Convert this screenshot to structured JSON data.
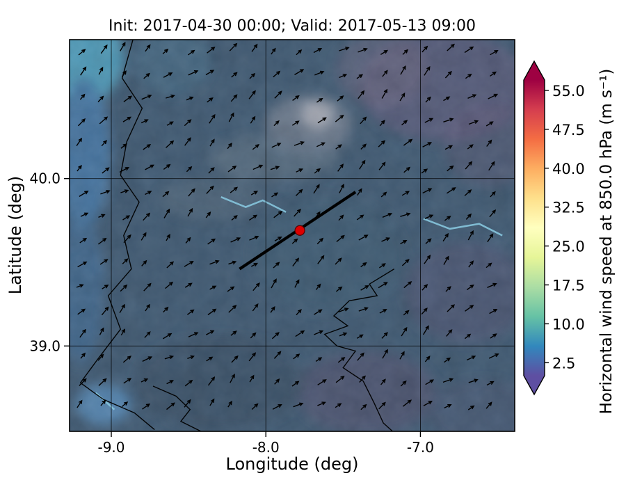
{
  "chart_data": {
    "type": "heatmap",
    "title": "Init: 2017-04-30 00:00; Valid: 2017-05-13 09:00",
    "xlabel": "Longitude (deg)",
    "ylabel": "Latitude (deg)",
    "x_range": [
      -9.27,
      -6.39
    ],
    "y_range": [
      38.49,
      40.83
    ],
    "xticks": [
      {
        "value": -9.0,
        "label": "-9.0"
      },
      {
        "value": -8.0,
        "label": "-8.0"
      },
      {
        "value": -7.0,
        "label": "-7.0"
      }
    ],
    "yticks": [
      {
        "value": 39.0,
        "label": "39.0"
      },
      {
        "value": 40.0,
        "label": "40.0"
      }
    ],
    "grid": true,
    "colorbar": {
      "label": "Horizontal wind speed at 850.0 hPa (m s⁻¹)",
      "units": "m s⁻¹",
      "value_range": [
        0,
        57
      ],
      "extend": "both",
      "colormap": "Spectral_r",
      "ticks": [
        {
          "value": 55.0,
          "label": "55.0"
        },
        {
          "value": 47.5,
          "label": "47.5"
        },
        {
          "value": 40.0,
          "label": "40.0"
        },
        {
          "value": 32.5,
          "label": "32.5"
        },
        {
          "value": 25.0,
          "label": "25.0"
        },
        {
          "value": 17.5,
          "label": "17.5"
        },
        {
          "value": 10.0,
          "label": "10.0"
        },
        {
          "value": 2.5,
          "label": "2.5"
        }
      ],
      "gradient_stops": [
        {
          "pos": 0.0,
          "color": "#5e4fa2"
        },
        {
          "pos": 0.1,
          "color": "#3288bd"
        },
        {
          "pos": 0.2,
          "color": "#66c2a5"
        },
        {
          "pos": 0.3,
          "color": "#abdda4"
        },
        {
          "pos": 0.4,
          "color": "#e6f598"
        },
        {
          "pos": 0.5,
          "color": "#ffffbf"
        },
        {
          "pos": 0.6,
          "color": "#fee08b"
        },
        {
          "pos": 0.7,
          "color": "#fdae61"
        },
        {
          "pos": 0.8,
          "color": "#f46d43"
        },
        {
          "pos": 0.9,
          "color": "#d53e4f"
        },
        {
          "pos": 1.0,
          "color": "#9e0142"
        }
      ]
    },
    "field": {
      "description": "Wind speed mostly 2.5-10 m s-1 over the domain; higher (teal/blue) over the Atlantic at the north-west corner, purple-gray patches inland",
      "base_color": "#44607b",
      "patches": [
        {
          "lon": -9.22,
          "lat": 40.72,
          "rx": 0.3,
          "ry": 0.28,
          "color": "#55a8c8",
          "opacity": 0.95
        },
        {
          "lon": -9.18,
          "lat": 40.15,
          "rx": 0.17,
          "ry": 0.45,
          "color": "#4b80b0",
          "opacity": 0.9
        },
        {
          "lon": -9.2,
          "lat": 39.35,
          "rx": 0.15,
          "ry": 0.45,
          "color": "#47749f",
          "opacity": 0.75
        },
        {
          "lon": -9.05,
          "lat": 38.65,
          "rx": 0.18,
          "ry": 0.12,
          "color": "#5d95c5",
          "opacity": 0.85
        },
        {
          "lon": -8.6,
          "lat": 40.7,
          "rx": 0.25,
          "ry": 0.2,
          "color": "#4e7d9a",
          "opacity": 0.5
        },
        {
          "lon": -7.67,
          "lat": 40.38,
          "rx": 0.1,
          "ry": 0.08,
          "color": "#eeedf1",
          "opacity": 0.95
        },
        {
          "lon": -7.72,
          "lat": 40.32,
          "rx": 0.28,
          "ry": 0.18,
          "color": "#9197a8",
          "opacity": 0.6
        },
        {
          "lon": -7.95,
          "lat": 40.12,
          "rx": 0.42,
          "ry": 0.14,
          "color": "#64798d",
          "opacity": 0.65
        },
        {
          "lon": -8.35,
          "lat": 39.88,
          "rx": 0.35,
          "ry": 0.12,
          "color": "#5d7386",
          "opacity": 0.55
        },
        {
          "lon": -6.85,
          "lat": 40.55,
          "rx": 0.55,
          "ry": 0.33,
          "color": "#6c6186",
          "opacity": 0.55
        },
        {
          "lon": -7.25,
          "lat": 40.65,
          "rx": 0.3,
          "ry": 0.22,
          "color": "#7a708f",
          "opacity": 0.45
        },
        {
          "lon": -6.55,
          "lat": 40.2,
          "rx": 0.3,
          "ry": 0.25,
          "color": "#665e80",
          "opacity": 0.4
        },
        {
          "lon": -6.7,
          "lat": 39.32,
          "rx": 0.4,
          "ry": 0.3,
          "color": "#5e5a7c",
          "opacity": 0.4
        },
        {
          "lon": -7.35,
          "lat": 38.72,
          "rx": 0.45,
          "ry": 0.25,
          "color": "#5c5677",
          "opacity": 0.5
        },
        {
          "lon": -8.3,
          "lat": 38.78,
          "rx": 0.55,
          "ry": 0.28,
          "color": "#3a536b",
          "opacity": 0.6
        },
        {
          "lon": -7.6,
          "lat": 39.55,
          "rx": 0.5,
          "ry": 0.35,
          "color": "#42617e",
          "opacity": 0.5
        },
        {
          "lon": -6.6,
          "lat": 38.6,
          "rx": 0.35,
          "ry": 0.2,
          "color": "#555d7d",
          "opacity": 0.4
        }
      ]
    },
    "map": {
      "coastline_color": "#000000",
      "river_color": "#86c5dd",
      "coastlines": [
        [
          [
            -8.86,
            40.83
          ],
          [
            -8.93,
            40.6
          ],
          [
            -8.8,
            40.42
          ],
          [
            -8.9,
            40.22
          ],
          [
            -8.94,
            40.02
          ],
          [
            -8.82,
            39.86
          ],
          [
            -8.92,
            39.66
          ],
          [
            -8.87,
            39.46
          ],
          [
            -9.02,
            39.3
          ],
          [
            -8.94,
            39.1
          ],
          [
            -9.08,
            38.93
          ],
          [
            -9.2,
            38.78
          ],
          [
            -9.05,
            38.68
          ],
          [
            -8.85,
            38.6
          ],
          [
            -8.72,
            38.5
          ]
        ],
        [
          [
            -7.17,
            39.46
          ],
          [
            -7.33,
            39.37
          ],
          [
            -7.28,
            39.3
          ],
          [
            -7.46,
            39.27
          ],
          [
            -7.56,
            39.18
          ],
          [
            -7.47,
            39.12
          ],
          [
            -7.62,
            39.07
          ],
          [
            -7.54,
            39.0
          ],
          [
            -7.42,
            38.97
          ],
          [
            -7.5,
            38.87
          ],
          [
            -7.37,
            38.79
          ],
          [
            -7.3,
            38.66
          ],
          [
            -7.24,
            38.54
          ],
          [
            -7.18,
            38.49
          ]
        ],
        [
          [
            -8.73,
            38.76
          ],
          [
            -8.58,
            38.7
          ],
          [
            -8.49,
            38.62
          ],
          [
            -8.55,
            38.55
          ],
          [
            -8.42,
            38.49
          ]
        ]
      ],
      "rivers": [
        [
          [
            -8.29,
            39.89
          ],
          [
            -8.13,
            39.83
          ],
          [
            -8.02,
            39.87
          ],
          [
            -7.87,
            39.8
          ]
        ],
        [
          [
            -6.98,
            39.76
          ],
          [
            -6.81,
            39.7
          ],
          [
            -6.62,
            39.73
          ],
          [
            -6.47,
            39.66
          ]
        ],
        [
          [
            -9.1,
            38.72
          ],
          [
            -8.98,
            38.62
          ]
        ]
      ]
    },
    "wind_vectors": {
      "mean_direction_deg": 40,
      "direction_variation_deg": 20,
      "typical_speed_ms": 6,
      "grid_cols": 20,
      "grid_rows": 16
    },
    "transect": {
      "start": [
        -8.17,
        39.46
      ],
      "end": [
        -7.42,
        39.92
      ],
      "color": "#000000"
    },
    "marker": {
      "lon": -7.78,
      "lat": 39.69,
      "color": "#dd0000"
    }
  }
}
